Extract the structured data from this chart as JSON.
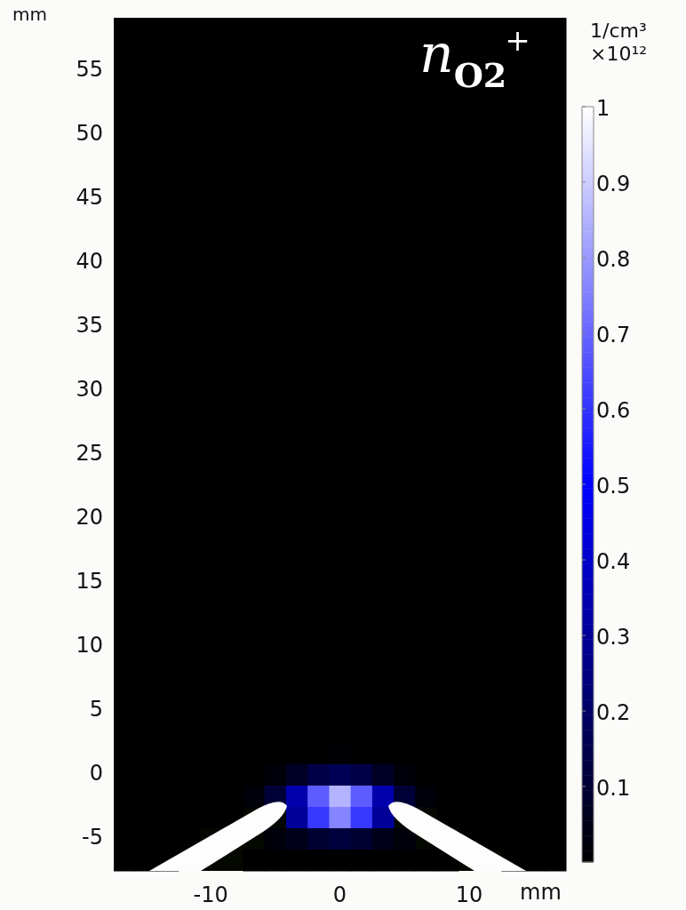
{
  "chart_data": {
    "type": "heatmap",
    "xlabel": "mm",
    "ylabel": "mm",
    "clabel": "1/cm³\n×10¹²",
    "annotations": [
      "n$_{O2}$$^{+}$"
    ],
    "categories": [
      null,
      null,
      null,
      null,
      "-10",
      null,
      null,
      null,
      null,
      null,
      "0",
      null,
      null,
      null,
      null,
      null,
      "10",
      null,
      null,
      null,
      null
    ],
    "y_categories": [
      null,
      null,
      "55",
      null,
      null,
      "50",
      null,
      null,
      "45",
      null,
      null,
      "40",
      null,
      null,
      "35",
      null,
      null,
      "30",
      null,
      null,
      "25",
      null,
      null,
      "20",
      null,
      null,
      "15",
      null,
      null,
      "10",
      null,
      null,
      "5",
      null,
      null,
      "0",
      null,
      null,
      "-5",
      null
    ],
    "clim": [
      0,
      1
    ],
    "cticks": [
      0.1,
      0.2,
      0.3,
      0.4,
      0.5,
      0.6,
      0.7,
      0.8,
      0.9,
      1
    ],
    "cells": [
      [
        0,
        0,
        0,
        0,
        0,
        0,
        0,
        0,
        0,
        0,
        0,
        0,
        0,
        0,
        0,
        0,
        0,
        0,
        0,
        0,
        0
      ],
      [
        0,
        0,
        0,
        0,
        0,
        0,
        0,
        0,
        0,
        0,
        0,
        0,
        0,
        0,
        0,
        0,
        0,
        0,
        0,
        0,
        0
      ],
      [
        0,
        0,
        0,
        0,
        0,
        0,
        0,
        0,
        0,
        0,
        0,
        0,
        0,
        0,
        0,
        0,
        0,
        0,
        0,
        0,
        0
      ],
      [
        0,
        0,
        0,
        0,
        0,
        0,
        0,
        0,
        0,
        0,
        0,
        0,
        0,
        0,
        0,
        0,
        0,
        0,
        0,
        0,
        0
      ],
      [
        0,
        0,
        0,
        0,
        0,
        0,
        0,
        0,
        0,
        0,
        0,
        0,
        0,
        0,
        0,
        0,
        0,
        0,
        0,
        0,
        0
      ],
      [
        0,
        0,
        0,
        0,
        0,
        0,
        0,
        0,
        0,
        0,
        0,
        0,
        0,
        0,
        0,
        0,
        0,
        0,
        0,
        0,
        0
      ],
      [
        0,
        0,
        0,
        0,
        0,
        0,
        0,
        0,
        0,
        0,
        0,
        0,
        0,
        0,
        0,
        0,
        0,
        0,
        0,
        0,
        0
      ],
      [
        0,
        0,
        0,
        0,
        0,
        0,
        0,
        0,
        0,
        0,
        0,
        0,
        0,
        0,
        0,
        0,
        0,
        0,
        0,
        0,
        0
      ],
      [
        0,
        0,
        0,
        0,
        0,
        0,
        0,
        0,
        0,
        0,
        0,
        0,
        0,
        0,
        0,
        0,
        0,
        0,
        0,
        0,
        0
      ],
      [
        0,
        0,
        0,
        0,
        0,
        0,
        0,
        0,
        0,
        0,
        0,
        0,
        0,
        0,
        0,
        0,
        0,
        0,
        0,
        0,
        0
      ],
      [
        0,
        0,
        0,
        0,
        0,
        0,
        0,
        0,
        0,
        0,
        0,
        0,
        0,
        0,
        0,
        0,
        0,
        0,
        0,
        0,
        0
      ],
      [
        0,
        0,
        0,
        0,
        0,
        0,
        0,
        0,
        0,
        0,
        0,
        0,
        0,
        0,
        0,
        0,
        0,
        0,
        0,
        0,
        0
      ],
      [
        0,
        0,
        0,
        0,
        0,
        0,
        0,
        0,
        0,
        0,
        0,
        0,
        0,
        0,
        0,
        0,
        0,
        0,
        0,
        0,
        0
      ],
      [
        0,
        0,
        0,
        0,
        0,
        0,
        0,
        0,
        0,
        0,
        0,
        0,
        0,
        0,
        0,
        0,
        0,
        0,
        0,
        0,
        0
      ],
      [
        0,
        0,
        0,
        0,
        0,
        0,
        0,
        0,
        0,
        0,
        0,
        0,
        0,
        0,
        0,
        0,
        0,
        0,
        0,
        0,
        0
      ],
      [
        0,
        0,
        0,
        0,
        0,
        0,
        0,
        0,
        0,
        0,
        0,
        0,
        0,
        0,
        0,
        0,
        0,
        0,
        0,
        0,
        0
      ],
      [
        0,
        0,
        0,
        0,
        0,
        0,
        0,
        0,
        0,
        0,
        0,
        0,
        0,
        0,
        0,
        0,
        0,
        0,
        0,
        0,
        0
      ],
      [
        0,
        0,
        0,
        0,
        0,
        0,
        0,
        0,
        0,
        0,
        0,
        0,
        0,
        0,
        0,
        0,
        0,
        0,
        0,
        0,
        0
      ],
      [
        0,
        0,
        0,
        0,
        0,
        0,
        0,
        0,
        0,
        0,
        0,
        0,
        0,
        0,
        0,
        0,
        0,
        0,
        0,
        0,
        0
      ],
      [
        0,
        0,
        0,
        0,
        0,
        0,
        0,
        0,
        0,
        0,
        0,
        0,
        0,
        0,
        0,
        0,
        0,
        0,
        0,
        0,
        0
      ],
      [
        0,
        0,
        0,
        0,
        0,
        0,
        0,
        0,
        0,
        0,
        0,
        0,
        0,
        0,
        0,
        0,
        0,
        0,
        0,
        0,
        0
      ],
      [
        0,
        0,
        0,
        0,
        0,
        0,
        0,
        0,
        0,
        0,
        0,
        0,
        0,
        0,
        0,
        0,
        0,
        0,
        0,
        0,
        0
      ],
      [
        0,
        0,
        0,
        0,
        0,
        0,
        0,
        0,
        0,
        0,
        0,
        0,
        0,
        0,
        0,
        0,
        0,
        0,
        0,
        0,
        0
      ],
      [
        0,
        0,
        0,
        0,
        0,
        0,
        0,
        0,
        0,
        0,
        0,
        0,
        0,
        0,
        0,
        0,
        0,
        0,
        0,
        0,
        0
      ],
      [
        0,
        0,
        0,
        0,
        0,
        0,
        0,
        0,
        0,
        0,
        0,
        0,
        0,
        0,
        0,
        0,
        0,
        0,
        0,
        0,
        0
      ],
      [
        0,
        0,
        0,
        0,
        0,
        0,
        0,
        0,
        0,
        0,
        0,
        0,
        0,
        0,
        0,
        0,
        0,
        0,
        0,
        0,
        0
      ],
      [
        0,
        0,
        0,
        0,
        0,
        0,
        0,
        0,
        0,
        0,
        0,
        0,
        0,
        0,
        0,
        0,
        0,
        0,
        0,
        0,
        0
      ],
      [
        0,
        0,
        0,
        0,
        0,
        0,
        0,
        0,
        0,
        0,
        0,
        0,
        0,
        0,
        0,
        0,
        0,
        0,
        0,
        0,
        0
      ],
      [
        0,
        0,
        0,
        0,
        0,
        0,
        0,
        0,
        0,
        0,
        0,
        0,
        0,
        0,
        0,
        0,
        0,
        0,
        0,
        0,
        0
      ],
      [
        0,
        0,
        0,
        0,
        0,
        0,
        0,
        0,
        0,
        0,
        0,
        0,
        0,
        0,
        0,
        0,
        0,
        0,
        0,
        0,
        0
      ],
      [
        0,
        0,
        0,
        0,
        0,
        0,
        0,
        0,
        0,
        0,
        0,
        0,
        0,
        0,
        0,
        0,
        0,
        0,
        0,
        0,
        0
      ],
      [
        0,
        0,
        0,
        0,
        0,
        0,
        0,
        0,
        0,
        0,
        0,
        0,
        0,
        0,
        0,
        0,
        0,
        0,
        0,
        0,
        0
      ],
      [
        0,
        0,
        0,
        0,
        0,
        0,
        0,
        0,
        0,
        0,
        0,
        0,
        0,
        0,
        0,
        0,
        0,
        0,
        0,
        0,
        0
      ],
      [
        0,
        0,
        0,
        0,
        0,
        0,
        0,
        0,
        0,
        0,
        0,
        0,
        0,
        0,
        0,
        0,
        0,
        0,
        0,
        0,
        0
      ],
      [
        0,
        0,
        0,
        0,
        0,
        0,
        0,
        0,
        0,
        0,
        0.01,
        0,
        0,
        0,
        0,
        0,
        0,
        0,
        0,
        0,
        0
      ],
      [
        0,
        0,
        0,
        0,
        0,
        0,
        0,
        0.02,
        0.07,
        0.14,
        0.17,
        0.14,
        0.07,
        0.02,
        0,
        0,
        0,
        0,
        0,
        0,
        0
      ],
      [
        0,
        0,
        0,
        0,
        0,
        0,
        0.02,
        0.11,
        0.34,
        0.68,
        0.85,
        0.68,
        0.34,
        0.11,
        0.02,
        0,
        0,
        0,
        0,
        0,
        0
      ],
      [
        0,
        0,
        0,
        0,
        0,
        0,
        null,
        null,
        0.3,
        0.61,
        0.76,
        0.61,
        0.3,
        null,
        null,
        0,
        0,
        0,
        0,
        0,
        0
      ],
      [
        0,
        0,
        0,
        0,
        null,
        null,
        null,
        0.02,
        0.05,
        0.1,
        0.12,
        0.1,
        0.05,
        0.02,
        null,
        null,
        0,
        0,
        0,
        0,
        0
      ],
      [
        0,
        0,
        0,
        null,
        null,
        null,
        0,
        0,
        0,
        0,
        0,
        0,
        0,
        0,
        0,
        0,
        null,
        null,
        0,
        0,
        0
      ]
    ]
  }
}
